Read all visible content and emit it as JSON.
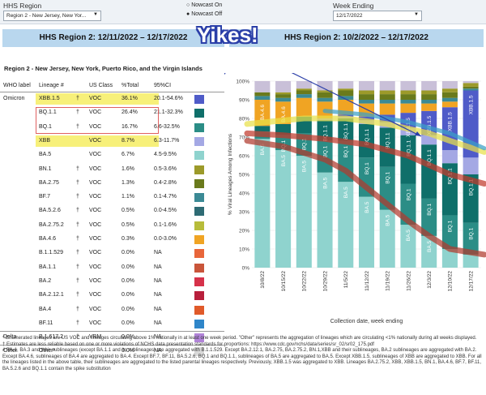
{
  "filters": {
    "region_label": "HHS Region",
    "region_value": "Region 2 - New Jersey, New Yor...",
    "nowcast_on": "Nowcast On",
    "nowcast_off": "Nowcast Off",
    "week_label": "Week Ending",
    "week_value": "12/17/2022"
  },
  "banner": {
    "left": "HHS Region 2: 12/11/2022 – 12/17/2022",
    "right": "HHS Region 2: 10/2/2022 – 12/17/2022",
    "yikes": "Yikes!"
  },
  "region_title": "Region 2 - New Jersey, New York, Puerto Rico, and the Virgin Islands",
  "table": {
    "headers": [
      "WHO label",
      "Lineage #",
      "US Class",
      "%Total",
      "95%CI"
    ],
    "rows": [
      {
        "who": "Omicron",
        "lineage": "XBB.1.5",
        "dagger": "†",
        "cls": "VOC",
        "pct": "36.1%",
        "ci": "20.1-54.6%",
        "color": "#4f5bc8"
      },
      {
        "who": "",
        "lineage": "BQ.1.1",
        "dagger": "†",
        "cls": "VOC",
        "pct": "26.4%",
        "ci": "21.1-32.3%",
        "color": "#0f6f6a"
      },
      {
        "who": "",
        "lineage": "BQ.1",
        "dagger": "†",
        "cls": "VOC",
        "pct": "16.7%",
        "ci": "6.6-32.5%",
        "color": "#2b8d86"
      },
      {
        "who": "",
        "lineage": "XBB",
        "dagger": "",
        "cls": "VOC",
        "pct": "8.7%",
        "ci": "6.3-11.7%",
        "color": "#a4a8e4"
      },
      {
        "who": "",
        "lineage": "BA.5",
        "dagger": "",
        "cls": "VOC",
        "pct": "6.7%",
        "ci": "4.5-9.5%",
        "color": "#8fd3ce"
      },
      {
        "who": "",
        "lineage": "BN.1",
        "dagger": "†",
        "cls": "VOC",
        "pct": "1.6%",
        "ci": "0.5-3.6%",
        "color": "#9c9a2a"
      },
      {
        "who": "",
        "lineage": "BA.2.75",
        "dagger": "†",
        "cls": "VOC",
        "pct": "1.3%",
        "ci": "0.4-2.8%",
        "color": "#6a7a1c"
      },
      {
        "who": "",
        "lineage": "BF.7",
        "dagger": "†",
        "cls": "VOC",
        "pct": "1.1%",
        "ci": "0.1-4.7%",
        "color": "#3b8a95"
      },
      {
        "who": "",
        "lineage": "BA.5.2.6",
        "dagger": "†",
        "cls": "VOC",
        "pct": "0.5%",
        "ci": "0.0-4.5%",
        "color": "#2e6b74"
      },
      {
        "who": "",
        "lineage": "BA.2.75.2",
        "dagger": "†",
        "cls": "VOC",
        "pct": "0.5%",
        "ci": "0.1-1.6%",
        "color": "#b7bc3a"
      },
      {
        "who": "",
        "lineage": "BA.4.6",
        "dagger": "†",
        "cls": "VOC",
        "pct": "0.3%",
        "ci": "0.0-3.0%",
        "color": "#f0a423"
      },
      {
        "who": "",
        "lineage": "B.1.1.529",
        "dagger": "†",
        "cls": "VOC",
        "pct": "0.0%",
        "ci": "NA",
        "color": "#e8663a"
      },
      {
        "who": "",
        "lineage": "BA.1.1",
        "dagger": "†",
        "cls": "VOC",
        "pct": "0.0%",
        "ci": "NA",
        "color": "#c9553a"
      },
      {
        "who": "",
        "lineage": "BA.2",
        "dagger": "†",
        "cls": "VOC",
        "pct": "0.0%",
        "ci": "NA",
        "color": "#d6324a"
      },
      {
        "who": "",
        "lineage": "BA.2.12.1",
        "dagger": "†",
        "cls": "VOC",
        "pct": "0.0%",
        "ci": "NA",
        "color": "#b81f3c"
      },
      {
        "who": "",
        "lineage": "BA.4",
        "dagger": "†",
        "cls": "VOC",
        "pct": "0.0%",
        "ci": "NA",
        "color": "#e05a2a"
      },
      {
        "who": "",
        "lineage": "BF.11",
        "dagger": "†",
        "cls": "VOC",
        "pct": "0.0%",
        "ci": "NA",
        "color": "#2f86c9"
      },
      {
        "who": "Delta",
        "lineage": "B.1.617.2",
        "dagger": "†",
        "cls": "VBM",
        "pct": "0.0%",
        "ci": "NA",
        "color": "#b183d8"
      },
      {
        "who": "Other",
        "lineage": "Other*",
        "dagger": "",
        "cls": "",
        "pct": "0.0%",
        "ci": "NA",
        "color": "#d9d9d9"
      }
    ]
  },
  "chart_data": {
    "type": "bar",
    "stacked": true,
    "xlabel": "Collection date, week ending",
    "ylabel": "% Viral Lineages Among Infections",
    "ylim": [
      0,
      100
    ],
    "yticks": [
      "0%",
      "10%",
      "20%",
      "30%",
      "40%",
      "50%",
      "60%",
      "70%",
      "80%",
      "90%",
      "100%"
    ],
    "categories": [
      "10/8/22",
      "10/15/22",
      "10/22/22",
      "10/29/22",
      "11/5/22",
      "11/12/22",
      "11/19/22",
      "11/26/22",
      "12/3/22",
      "12/10/22",
      "12/17/22"
    ],
    "series": [
      {
        "name": "BA.5",
        "color": "#8fd3ce",
        "values": [
          69,
          63,
          60,
          51,
          46,
          38,
          31,
          23,
          17,
          10,
          7
        ]
      },
      {
        "name": "BQ.1",
        "color": "#2b8d86",
        "values": [
          4,
          8,
          12,
          17,
          22,
          21,
          23,
          22,
          20,
          18,
          17
        ]
      },
      {
        "name": "BQ.1.1",
        "color": "#0f6f6a",
        "values": [
          3,
          6,
          9,
          11,
          12,
          18,
          21,
          26,
          29,
          28,
          26
        ]
      },
      {
        "name": "XBB",
        "color": "#a4a8e4",
        "values": [
          0,
          0,
          0,
          1,
          1,
          2,
          3,
          4,
          5,
          7,
          9
        ]
      },
      {
        "name": "XBB.1.5",
        "color": "#4f5bc8",
        "values": [
          0,
          0,
          0,
          0,
          1,
          2,
          4,
          8,
          13,
          23,
          36
        ]
      },
      {
        "name": "BA.4.6",
        "color": "#f0a423",
        "values": [
          14,
          12,
          10,
          9,
          8,
          7,
          6,
          5,
          4,
          3,
          0
        ]
      },
      {
        "name": "BF.7",
        "color": "#3b8a95",
        "values": [
          2,
          2,
          2,
          2,
          2,
          2,
          2,
          2,
          2,
          2,
          1
        ]
      },
      {
        "name": "BA.2.75",
        "color": "#6a7a1c",
        "values": [
          2,
          2,
          2,
          3,
          3,
          3,
          3,
          3,
          3,
          3,
          1
        ]
      },
      {
        "name": "BN.1",
        "color": "#9c9a2a",
        "values": [
          0,
          1,
          1,
          1,
          1,
          2,
          2,
          2,
          2,
          2,
          2
        ]
      },
      {
        "name": "Other",
        "color": "#c9c0d8",
        "values": [
          6,
          6,
          4,
          5,
          4,
          5,
          5,
          5,
          5,
          4,
          1
        ]
      }
    ],
    "bar_labels": [
      {
        "series": "BA.5",
        "upto": 8,
        "text": "BA.5"
      },
      {
        "series": "BQ.1",
        "from": 1,
        "text": "BQ.1"
      },
      {
        "series": "BQ.1.1",
        "from": 3,
        "text": "BQ.1.1"
      },
      {
        "series": "XBB.1.5",
        "from": 7,
        "text": "XBB.1.5"
      },
      {
        "series": "BA.4.6",
        "upto": 1,
        "text": "BA.4.6"
      }
    ]
  },
  "notes": [
    "*      Enumerated lineages are US VOC and lineages circulating above 1% nationally in at least one week period. \"Other\" represents the aggregation of lineages which are circulating <1% nationally during all weeks displayed.",
    "†      Estimates are less reliable based on one or more violations of NCHS data presentation standards for proportions: https://www.cdc.gov/nchs/data/series/sr_02/sr02_175.pdf",
    "#      BA.1, BA.3 and their sublineages (except BA.1.1 and its sublineages) are aggregated with B.1.1.529. Except BA.2.12.1, BA.2.75, BA.2.75.2, BN.1,XBB and their sublineages, BA.2 sublineages are aggregated with BA.2. Except BA.4.6, sublineages of BA.4 are aggregated to BA.4. Except BF.7, BF.11, BA.5.2.6, BQ.1 and BQ.1.1, sublineages of BA.5 are aggregated to BA.5. Except XBB.1.5, sublineages of XBB are aggregated to XBB. For all the lineages listed in the above table, their sublineages are aggregated to the listed parental lineages respectively. Previously, XBB.1.5 was aggregated to XBB. Lineages BA.2.75.2, XBB, XBB.1.5, BN.1, BA.4.6, BF.7, BF.11, BA.5.2.6 and BQ.1.1 contain the spike substitution"
  ]
}
